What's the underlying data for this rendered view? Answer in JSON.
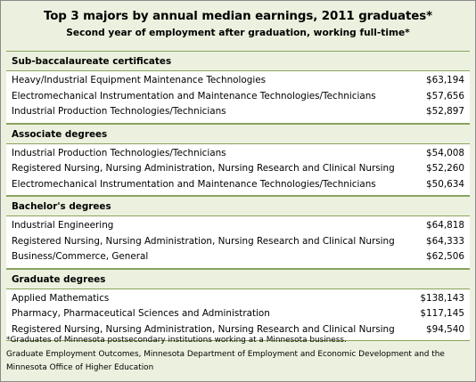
{
  "title": "Top 3 majors by annual median earnings, 2011 graduates*",
  "subtitle": "Second year of employment after graduation, working full-time*",
  "sections": [
    {
      "heading": "Sub-baccalaureate certificates",
      "rows": [
        {
          "major": "Heavy/Industrial Equipment Maintenance Technologies",
          "earnings": "$63,194"
        },
        {
          "major": "Electromechanical Instrumentation and Maintenance Technologies/Technicians",
          "earnings": "$57,656"
        },
        {
          "major": "Industrial Production Technologies/Technicians",
          "earnings": "$52,897"
        }
      ]
    },
    {
      "heading": "Associate degrees",
      "rows": [
        {
          "major": "Industrial Production Technologies/Technicians",
          "earnings": "$54,008"
        },
        {
          "major": "Registered Nursing, Nursing Administration, Nursing Research and Clinical Nursing",
          "earnings": "$52,260"
        },
        {
          "major": "Electromechanical Instrumentation and Maintenance Technologies/Technicians",
          "earnings": "$50,634"
        }
      ]
    },
    {
      "heading": "Bachelor's degrees",
      "rows": [
        {
          "major": "Industrial Engineering",
          "earnings": "$64,818"
        },
        {
          "major": "Registered Nursing, Nursing Administration, Nursing Research and Clinical Nursing",
          "earnings": "$64,333"
        },
        {
          "major": "Business/Commerce, General",
          "earnings": "$62,506"
        }
      ]
    },
    {
      "heading": "Graduate degrees",
      "rows": [
        {
          "major": "Applied Mathematics",
          "earnings": "$138,143"
        },
        {
          "major": "Pharmacy, Pharmaceutical Sciences and Administration",
          "earnings": "$117,145"
        },
        {
          "major": "Registered Nursing, Nursing Administration, Nursing Research and Clinical Nursing",
          "earnings": "$94,540"
        }
      ]
    }
  ],
  "footnote": "*Graduates of Minnesota postsecondary institutions working at a Minnesota business.",
  "source": "Graduate Employment Outcomes, Minnesota Department of Employment and Economic Development and the Minnesota Office of Higher Education"
}
